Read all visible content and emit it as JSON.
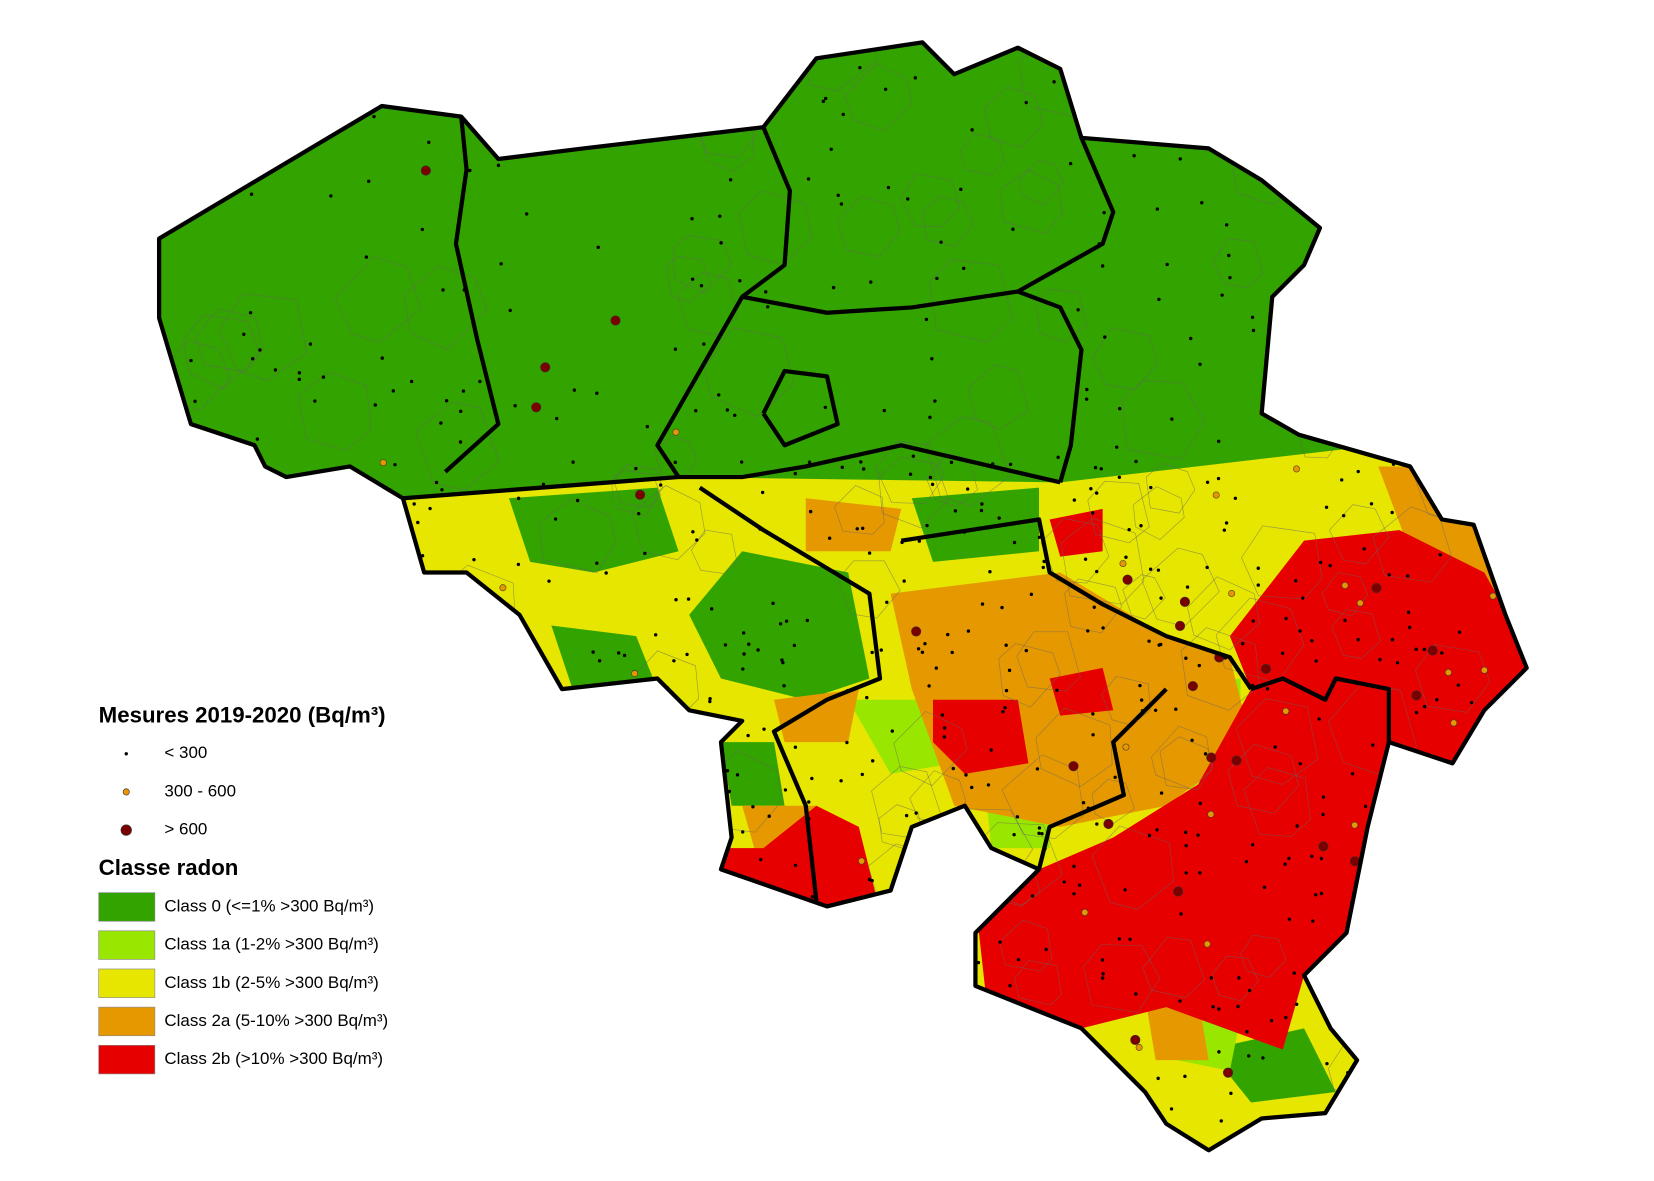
{
  "legend": {
    "measures": {
      "title": "Mesures 2019-2020 (Bq/m³)",
      "items": [
        {
          "label": "< 300",
          "color": "#000000"
        },
        {
          "label": "300 - 600",
          "color": "#e69600"
        },
        {
          "label": "> 600",
          "color": "#7a0000"
        }
      ]
    },
    "classes": {
      "title": "Classe radon",
      "items": [
        {
          "label": "Class 0 (<=1% >300 Bq/m³)",
          "color": "#33a300"
        },
        {
          "label": "Class 1a (1-2% >300 Bq/m³)",
          "color": "#99e600"
        },
        {
          "label": "Class 1b (2-5% >300 Bq/m³)",
          "color": "#e6e600"
        },
        {
          "label": "Class 2a (5-10% >300 Bq/m³)",
          "color": "#e69800"
        },
        {
          "label": "Class 2b (>10% >300 Bq/m³)",
          "color": "#e60000"
        }
      ]
    }
  }
}
